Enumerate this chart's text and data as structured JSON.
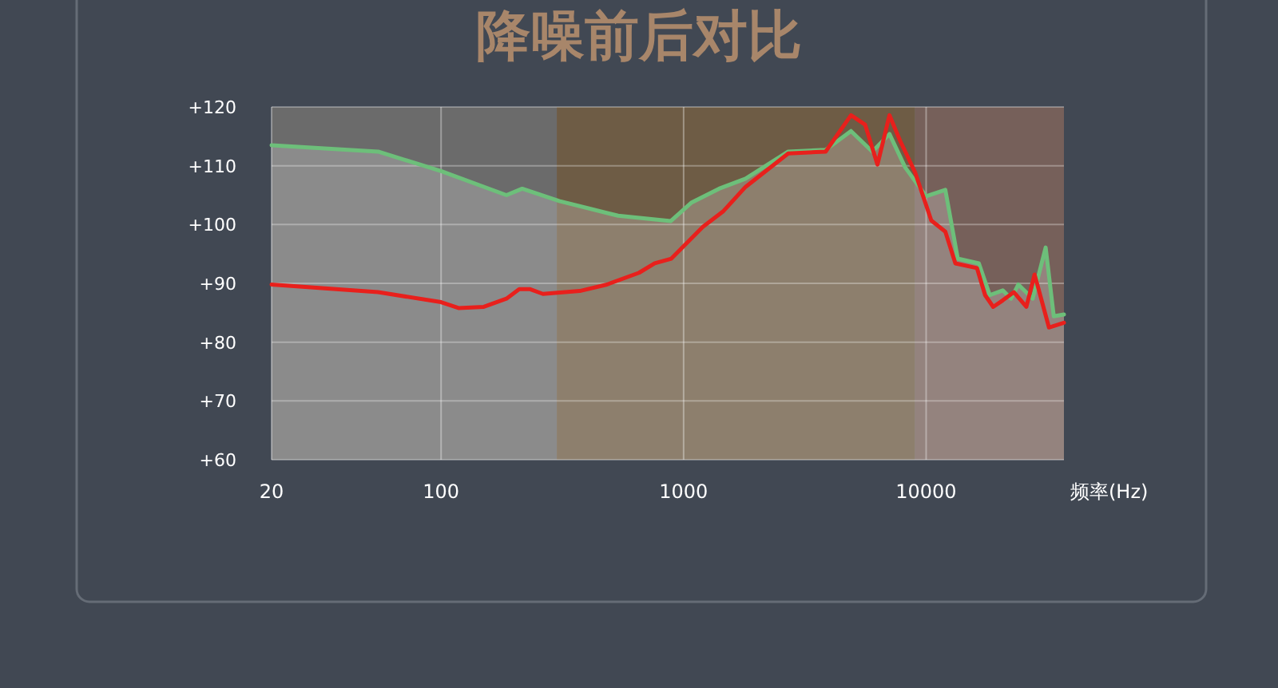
{
  "chart_data": {
    "type": "line",
    "title": "降噪前后对比",
    "xlabel": "频率(Hz)",
    "log": "x",
    "grid": true,
    "marker": "none",
    "line_style": "solid",
    "xlim": [
      20,
      37000
    ],
    "ylim": [
      60,
      120
    ],
    "xticks": [
      20,
      100,
      1000,
      10000
    ],
    "yticks": [
      {
        "value": 60,
        "label": "+60"
      },
      {
        "value": 70,
        "label": "+70"
      },
      {
        "value": 80,
        "label": "+80"
      },
      {
        "value": 90,
        "label": "+90"
      },
      {
        "value": 100,
        "label": "+100"
      },
      {
        "value": 110,
        "label": "+110"
      },
      {
        "value": 120,
        "label": "+120"
      }
    ],
    "bands": [
      {
        "axis": "x",
        "from": 20,
        "to": 300,
        "color": "#6b6b6b"
      },
      {
        "axis": "x",
        "from": 300,
        "to": 9000,
        "color": "#6e5c45"
      },
      {
        "axis": "x",
        "from": 9000,
        "to": 37000,
        "color": "#76605a"
      }
    ],
    "series": [
      {
        "type": "area",
        "color": "#6dbf7a",
        "x": [
          20,
          55,
          100,
          186,
          216,
          307,
          537,
          886,
          1075,
          1400,
          1800,
          2700,
          3850,
          4900,
          6000,
          7060,
          8200,
          10000,
          12000,
          13500,
          16500,
          18300,
          20700,
          22400,
          24000,
          27500,
          31100,
          33600,
          37000
        ],
        "values": [
          113.5,
          112.4,
          109.1,
          105,
          106.1,
          104,
          101.5,
          100.6,
          103.7,
          106.1,
          107.8,
          112.4,
          112.7,
          115.9,
          112.4,
          115.4,
          109.7,
          104.8,
          105.9,
          94.2,
          93.4,
          88,
          88.8,
          87.4,
          89.8,
          87.4,
          96.1,
          84.4,
          84.7
        ]
      },
      {
        "color": "#e8201c",
        "x": [
          20,
          55,
          100,
          118,
          150,
          186,
          210,
          233,
          263,
          373,
          483,
          655,
          760,
          890,
          1200,
          1460,
          1800,
          2700,
          3850,
          4900,
          5600,
          6300,
          7060,
          7800,
          9000,
          10500,
          12000,
          13200,
          16200,
          17500,
          18900,
          20700,
          23000,
          25900,
          28000,
          32100,
          37000
        ],
        "values": [
          89.8,
          88.5,
          86.8,
          85.8,
          86,
          87.4,
          89,
          89,
          88.2,
          88.7,
          89.8,
          91.8,
          93.4,
          94.2,
          99.6,
          102.3,
          106.4,
          112.1,
          112.4,
          118.6,
          117,
          110.2,
          118.6,
          114.3,
          108.9,
          100.7,
          98.8,
          93.4,
          92.6,
          88,
          86,
          87.1,
          88.5,
          86,
          91.5,
          82.5,
          83.3
        ]
      }
    ]
  }
}
